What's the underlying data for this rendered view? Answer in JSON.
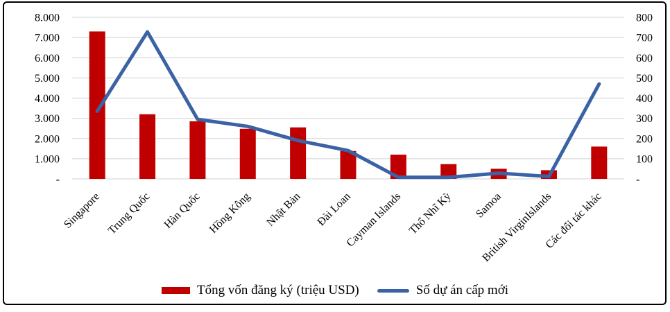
{
  "chart_data": {
    "type": "combo-bar-line",
    "title": "",
    "categories": [
      "Singapore",
      "Trung Quốc",
      "Hàn Quốc",
      "Hồng Kông",
      "Nhật Bản",
      "Đài Loan",
      "Cayman Islands",
      "Thổ Nhĩ Kỳ",
      "Samoa",
      "British VirginIslands",
      "Các đối tác khác"
    ],
    "series": [
      {
        "name": "Tổng vốn đăng ký (triệu USD)",
        "type": "bar",
        "axis": "left",
        "color": "#C00000",
        "values": [
          7300,
          3200,
          2850,
          2480,
          2550,
          1380,
          1200,
          730,
          500,
          430,
          1600
        ]
      },
      {
        "name": "Số dự án cấp mới",
        "type": "line",
        "axis": "right",
        "color": "#3B62A5",
        "values": [
          335,
          728,
          295,
          260,
          190,
          140,
          8,
          8,
          28,
          12,
          470
        ]
      }
    ],
    "left_axis": {
      "min": 0,
      "max": 8000,
      "step": 1000,
      "tick_labels": [
        "8.000",
        "7.000",
        "6.000",
        "5.000",
        "4.000",
        "3.000",
        "2.000",
        "1.000",
        "-"
      ]
    },
    "right_axis": {
      "min": 0,
      "max": 800,
      "step": 100,
      "tick_labels": [
        "800",
        "700",
        "600",
        "500",
        "400",
        "300",
        "200",
        "100",
        "-"
      ]
    },
    "grid": true,
    "legend_position": "bottom"
  },
  "legend": {
    "items": [
      {
        "label": "Tổng vốn đăng ký (triệu USD)",
        "swatch": "bar",
        "color": "#C00000"
      },
      {
        "label": "Số dự án cấp mới",
        "swatch": "line",
        "color": "#3B62A5"
      }
    ]
  },
  "colors": {
    "bar": "#C00000",
    "line": "#3B62A5",
    "gridline": "#D9D9D9",
    "text": "#000000",
    "border": "#000000",
    "background": "#FFFFFF"
  }
}
